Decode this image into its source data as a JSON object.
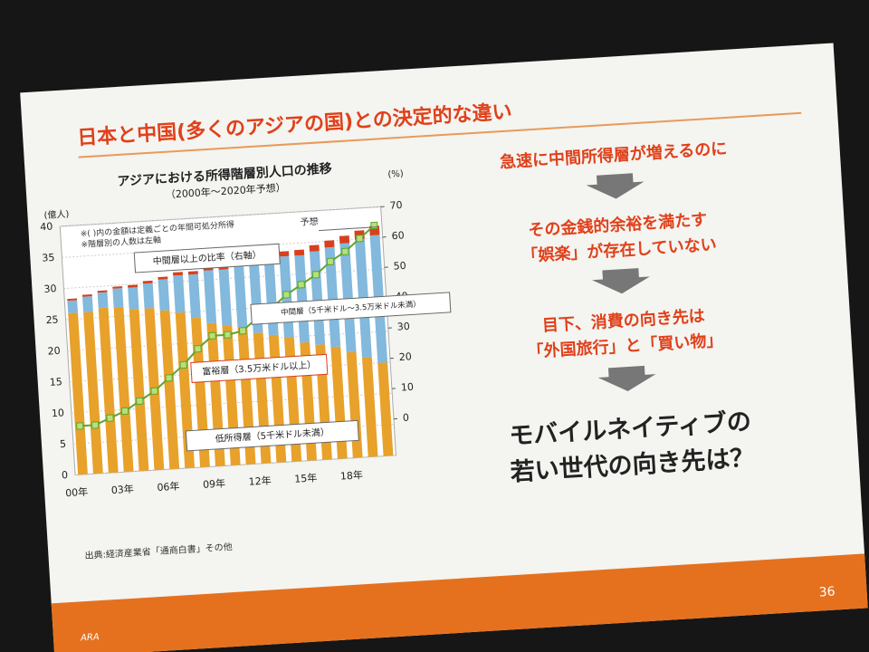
{
  "slide_title": "日本と中国(多くのアジアの国)との決定的な違い",
  "points": [
    "急速に中間所得層が増えるのに",
    "その金銭的余裕を満たす",
    "「娯楽」が存在していない",
    "目下、消費の向き先は",
    "「外国旅行」と「買い物」"
  ],
  "conclusion": [
    "モバイルネイティブの",
    "若い世代の向き先は？"
  ],
  "source": "出典:経済産業省「通商白書」その他",
  "page_number": "36",
  "logo": "ARA",
  "chart_data": {
    "type": "bar",
    "title": "アジアにおける所得階層別人口の推移",
    "subtitle": "（2000年～2020年予想）",
    "y_label": "(億人)",
    "y2_label": "(%)",
    "notes": [
      "※( )内の金額は定義ごとの年間可処分所得",
      "※階層別の人数は左軸"
    ],
    "forecast_label": "予想",
    "categories": [
      "00年",
      null,
      null,
      "03年",
      null,
      null,
      "06年",
      null,
      null,
      "09年",
      null,
      null,
      "12年",
      null,
      null,
      "15年",
      null,
      null,
      "18年",
      null,
      null
    ],
    "series": [
      {
        "name": "低所得層（5千米ドル未満）",
        "color": "#e8a12a",
        "values": [
          26,
          26,
          26.5,
          26.5,
          26,
          26,
          25.5,
          25,
          24,
          23,
          22.5,
          22,
          21,
          20.5,
          20,
          19,
          18.5,
          18,
          17,
          16,
          15
        ]
      },
      {
        "name": "中間層（5千米ドル～3.5万米ドル未満）",
        "color": "#82b9dd",
        "values": [
          2,
          2.5,
          2.5,
          3,
          3.5,
          4,
          5,
          6,
          7,
          8.5,
          9,
          10,
          11,
          12,
          13,
          14,
          15,
          16,
          17.5,
          19,
          20.5
        ]
      },
      {
        "name": "富裕層（3.5万米ドル以上）",
        "color": "#d8401c",
        "values": [
          0.3,
          0.3,
          0.3,
          0.3,
          0.4,
          0.4,
          0.4,
          0.5,
          0.5,
          0.5,
          0.6,
          0.6,
          0.7,
          0.7,
          0.8,
          0.9,
          1,
          1.1,
          1.2,
          1.4,
          1.5
        ]
      },
      {
        "name": "中間層以上の比率（右軸）",
        "color": "#5fa52e",
        "axis": "y2",
        "type": "line",
        "values": [
          4,
          4,
          6,
          8,
          11,
          14,
          18,
          22,
          27,
          31,
          31,
          32,
          36,
          39,
          43,
          46,
          49,
          53,
          56,
          60,
          64
        ]
      }
    ],
    "ylim": [
      0,
      40
    ],
    "yticks": [
      0,
      5,
      10,
      15,
      20,
      25,
      30,
      35,
      40
    ],
    "y2lim": [
      -12,
      70
    ],
    "y2ticks": [
      0,
      10,
      20,
      30,
      40,
      50,
      60,
      70
    ]
  }
}
